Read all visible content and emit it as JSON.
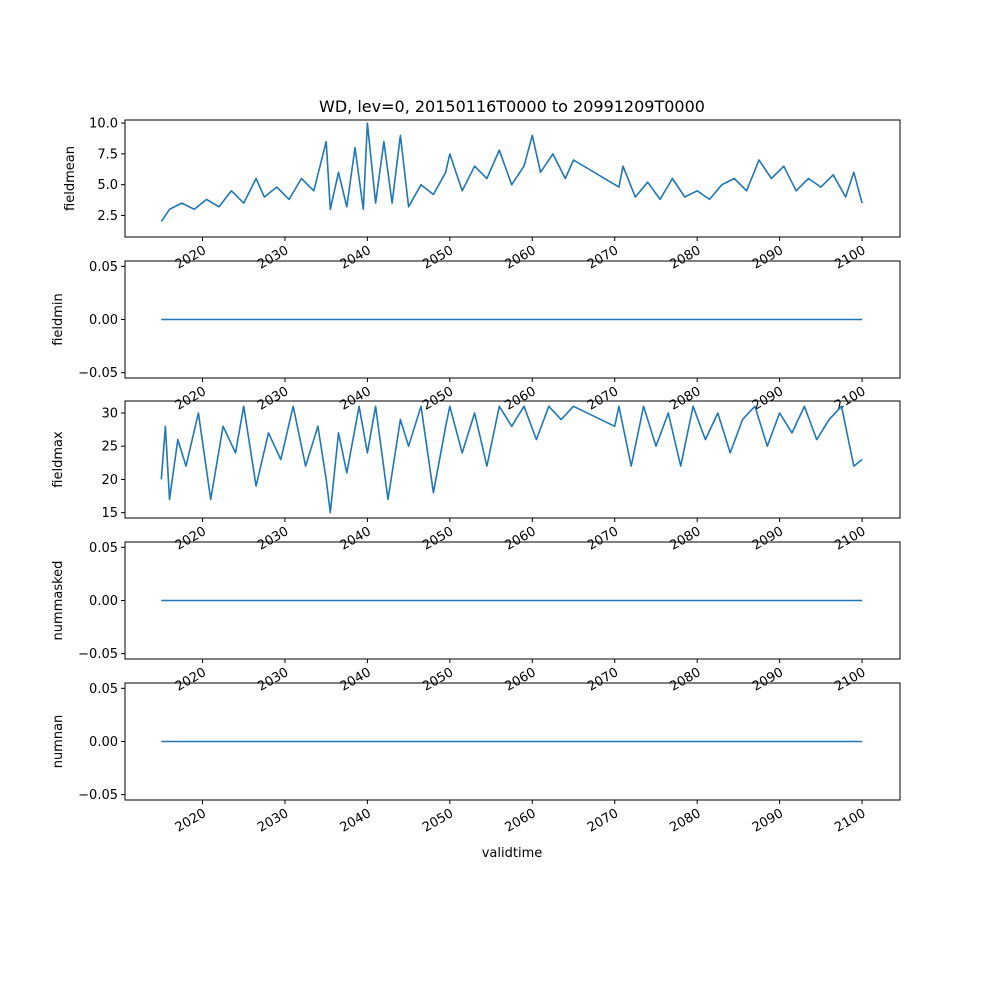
{
  "chart_data": {
    "type": "line",
    "title": "WD, lev=0, 20150116T0000 to 20991209T0000",
    "xlabel": "validtime",
    "xlim": [
      2010.6,
      2104.6
    ],
    "x_ticks": [
      2020,
      2030,
      2040,
      2050,
      2060,
      2070,
      2080,
      2090,
      2100
    ],
    "x_tick_labels": [
      "2020",
      "2030",
      "2040",
      "2050",
      "2060",
      "2070",
      "2080",
      "2090",
      "2100"
    ],
    "line_color": "#1f77b4",
    "panels": [
      {
        "ylabel": "fieldmean",
        "ylim": [
          0.75,
          10.25
        ],
        "yticks": [
          2.5,
          5.0,
          7.5,
          10.0
        ],
        "ytick_labels": [
          "2.5",
          "5.0",
          "7.5",
          "10.0"
        ],
        "x": [
          2015.0,
          2016.0,
          2017.5,
          2019.0,
          2020.5,
          2022.0,
          2023.5,
          2025.0,
          2026.5,
          2027.5,
          2029.0,
          2030.5,
          2032.0,
          2033.5,
          2035.0,
          2035.5,
          2036.5,
          2037.5,
          2038.5,
          2039.5,
          2040.0,
          2041.0,
          2042.0,
          2043.0,
          2044.0,
          2045.0,
          2046.5,
          2048.0,
          2049.5,
          2050.0,
          2051.5,
          2053.0,
          2054.5,
          2056.0,
          2057.5,
          2059.0,
          2060.0,
          2061.0,
          2062.5,
          2064.0,
          2065.0,
          2070.5,
          2071.0,
          2072.5,
          2074.0,
          2075.5,
          2077.0,
          2078.5,
          2080.0,
          2081.5,
          2083.0,
          2084.5,
          2086.0,
          2087.5,
          2089.0,
          2090.5,
          2092.0,
          2093.5,
          2095.0,
          2096.5,
          2098.0,
          2099.0,
          2100.0
        ],
        "y": [
          2.0,
          3.0,
          3.5,
          3.0,
          3.8,
          3.2,
          4.5,
          3.5,
          5.5,
          4.0,
          4.8,
          3.8,
          5.5,
          4.5,
          8.5,
          3.0,
          6.0,
          3.2,
          8.0,
          3.0,
          10.0,
          3.5,
          8.5,
          3.5,
          9.0,
          3.2,
          5.0,
          4.2,
          6.0,
          7.5,
          4.5,
          6.5,
          5.5,
          7.8,
          5.0,
          6.5,
          9.0,
          6.0,
          7.5,
          5.5,
          7.0,
          4.8,
          6.5,
          4.0,
          5.2,
          3.8,
          5.5,
          4.0,
          4.5,
          3.8,
          5.0,
          5.5,
          4.5,
          7.0,
          5.5,
          6.5,
          4.5,
          5.5,
          4.8,
          5.8,
          4.0,
          6.0,
          3.5
        ]
      },
      {
        "ylabel": "fieldmin",
        "ylim": [
          -0.055,
          0.055
        ],
        "yticks": [
          -0.05,
          0.0,
          0.05
        ],
        "ytick_labels": [
          "−0.05",
          "0.00",
          "0.05"
        ],
        "x": [
          2015.0,
          2100.0
        ],
        "y": [
          0.0,
          0.0
        ]
      },
      {
        "ylabel": "fieldmax",
        "ylim": [
          14.2,
          31.8
        ],
        "yticks": [
          15,
          20,
          25,
          30
        ],
        "ytick_labels": [
          "15",
          "20",
          "25",
          "30"
        ],
        "x": [
          2015.0,
          2015.5,
          2016.0,
          2017.0,
          2018.0,
          2019.5,
          2021.0,
          2022.5,
          2024.0,
          2025.0,
          2026.5,
          2028.0,
          2029.5,
          2031.0,
          2032.5,
          2034.0,
          2035.0,
          2035.5,
          2036.5,
          2037.5,
          2039.0,
          2040.0,
          2041.0,
          2042.5,
          2044.0,
          2045.0,
          2046.5,
          2048.0,
          2049.5,
          2050.0,
          2051.5,
          2053.0,
          2054.5,
          2056.0,
          2057.5,
          2059.0,
          2060.5,
          2062.0,
          2063.5,
          2065.0,
          2070.0,
          2070.5,
          2072.0,
          2073.5,
          2075.0,
          2076.5,
          2078.0,
          2079.5,
          2081.0,
          2082.5,
          2084.0,
          2085.5,
          2087.0,
          2088.5,
          2090.0,
          2091.5,
          2093.0,
          2094.5,
          2096.0,
          2097.5,
          2099.0,
          2100.0
        ],
        "y": [
          20,
          28,
          17,
          26,
          22,
          30,
          17,
          28,
          24,
          31,
          19,
          27,
          23,
          31,
          22,
          28,
          20,
          15,
          27,
          21,
          31,
          24,
          31,
          17,
          29,
          25,
          31,
          18,
          28,
          31,
          24,
          30,
          22,
          31,
          28,
          31,
          26,
          31,
          29,
          31,
          28,
          31,
          22,
          31,
          25,
          30,
          22,
          31,
          26,
          30,
          24,
          29,
          31,
          25,
          30,
          27,
          31,
          26,
          29,
          31,
          22,
          23
        ]
      },
      {
        "ylabel": "nummasked",
        "ylim": [
          -0.055,
          0.055
        ],
        "yticks": [
          -0.05,
          0.0,
          0.05
        ],
        "ytick_labels": [
          "−0.05",
          "0.00",
          "0.05"
        ],
        "x": [
          2015.0,
          2100.0
        ],
        "y": [
          0.0,
          0.0
        ]
      },
      {
        "ylabel": "numnan",
        "ylim": [
          -0.055,
          0.055
        ],
        "yticks": [
          -0.05,
          0.0,
          0.05
        ],
        "ytick_labels": [
          "−0.05",
          "0.00",
          "0.05"
        ],
        "x": [
          2015.0,
          2100.0
        ],
        "y": [
          0.0,
          0.0
        ]
      }
    ]
  }
}
